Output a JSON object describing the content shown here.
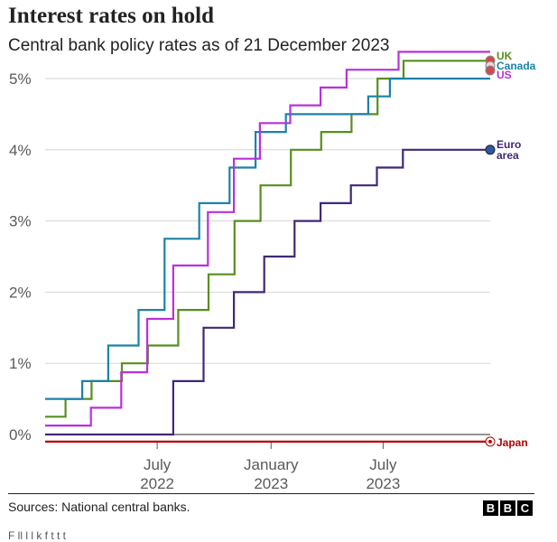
{
  "header": {
    "title": "Interest rates on hold",
    "subtitle": "Central bank policy rates as of 21 December 2023"
  },
  "footer": {
    "source": "Sources: National central banks.",
    "logo_letters": [
      "B",
      "B",
      "C"
    ],
    "cut_text": "F ll l l k f t t t"
  },
  "chart_data": {
    "type": "line",
    "step": true,
    "title": "Interest rates on hold",
    "subtitle": "Central bank policy rates as of 21 December 2023",
    "x_unit": "date",
    "xlim": [
      "2022-01-01",
      "2023-12-21"
    ],
    "ylim": [
      -0.2,
      5.6
    ],
    "grid": true,
    "y_ticks": [
      {
        "value": 0,
        "label": "0%"
      },
      {
        "value": 1,
        "label": "1%"
      },
      {
        "value": 2,
        "label": "2%"
      },
      {
        "value": 3,
        "label": "3%"
      },
      {
        "value": 4,
        "label": "4%"
      },
      {
        "value": 5,
        "label": "5%"
      }
    ],
    "x_ticks": [
      {
        "date": "2022-07-01",
        "label": [
          "July",
          "2022"
        ]
      },
      {
        "date": "2023-01-01",
        "label": [
          "January",
          "2023"
        ]
      },
      {
        "date": "2023-07-01",
        "label": [
          "July",
          "2023"
        ]
      }
    ],
    "series": [
      {
        "name": "UK",
        "color": "#588e1f",
        "label_lines": [
          "UK"
        ],
        "end_marker": "flag-uk",
        "points": [
          [
            "2022-01-01",
            0.25
          ],
          [
            "2022-02-03",
            0.5
          ],
          [
            "2022-03-17",
            0.75
          ],
          [
            "2022-05-05",
            1.0
          ],
          [
            "2022-06-16",
            1.25
          ],
          [
            "2022-08-04",
            1.75
          ],
          [
            "2022-09-22",
            2.25
          ],
          [
            "2022-11-03",
            3.0
          ],
          [
            "2022-12-15",
            3.5
          ],
          [
            "2023-02-02",
            4.0
          ],
          [
            "2023-03-23",
            4.25
          ],
          [
            "2023-05-11",
            4.5
          ],
          [
            "2023-06-22",
            5.0
          ],
          [
            "2023-08-03",
            5.25
          ],
          [
            "2023-12-21",
            5.25
          ]
        ]
      },
      {
        "name": "Canada",
        "color": "#1b82a8",
        "label_lines": [
          "Canada"
        ],
        "end_marker": "flag-canada",
        "points": [
          [
            "2022-01-01",
            0.5
          ],
          [
            "2022-03-02",
            0.75
          ],
          [
            "2022-04-13",
            1.25
          ],
          [
            "2022-06-01",
            1.75
          ],
          [
            "2022-07-13",
            2.75
          ],
          [
            "2022-09-07",
            3.25
          ],
          [
            "2022-10-26",
            3.75
          ],
          [
            "2022-12-07",
            4.25
          ],
          [
            "2023-01-25",
            4.5
          ],
          [
            "2023-06-07",
            4.75
          ],
          [
            "2023-07-12",
            5.0
          ],
          [
            "2023-12-21",
            5.0
          ]
        ]
      },
      {
        "name": "US",
        "color": "#ba30dc",
        "label_lines": [
          "US"
        ],
        "end_marker": "flag-us",
        "points": [
          [
            "2022-01-01",
            0.125
          ],
          [
            "2022-03-16",
            0.375
          ],
          [
            "2022-05-04",
            0.875
          ],
          [
            "2022-06-15",
            1.625
          ],
          [
            "2022-07-27",
            2.375
          ],
          [
            "2022-09-21",
            3.125
          ],
          [
            "2022-11-02",
            3.875
          ],
          [
            "2022-12-14",
            4.375
          ],
          [
            "2023-02-01",
            4.625
          ],
          [
            "2023-03-22",
            4.875
          ],
          [
            "2023-05-03",
            5.125
          ],
          [
            "2023-07-26",
            5.375
          ],
          [
            "2023-12-21",
            5.375
          ]
        ]
      },
      {
        "name": "Euro area",
        "color": "#412876",
        "label_lines": [
          "Euro",
          "area"
        ],
        "end_marker": "dot",
        "points": [
          [
            "2022-01-01",
            0.0
          ],
          [
            "2022-07-27",
            0.75
          ],
          [
            "2022-09-14",
            1.5
          ],
          [
            "2022-11-02",
            2.0
          ],
          [
            "2022-12-21",
            2.5
          ],
          [
            "2023-02-08",
            3.0
          ],
          [
            "2023-03-22",
            3.25
          ],
          [
            "2023-05-10",
            3.5
          ],
          [
            "2023-06-21",
            3.75
          ],
          [
            "2023-08-02",
            4.0
          ],
          [
            "2023-12-21",
            4.0
          ]
        ]
      },
      {
        "name": "Japan",
        "color": "#b80000",
        "label_lines": [
          "Japan"
        ],
        "end_marker": "flag-japan",
        "points": [
          [
            "2022-01-01",
            -0.1
          ],
          [
            "2023-12-21",
            -0.1
          ]
        ]
      }
    ]
  }
}
